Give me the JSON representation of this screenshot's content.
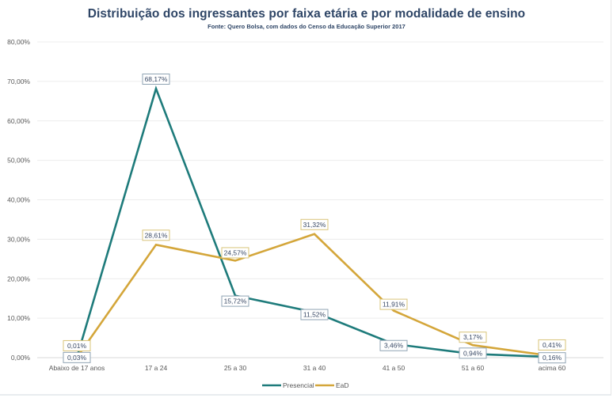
{
  "chart_data": {
    "type": "line",
    "title": "Distribuição dos ingressantes por faixa etária e por modalidade de ensino",
    "subtitle": "Fonte: Quero Bolsa, com dados do Censo da Educação Superior 2017",
    "xlabel": "",
    "ylabel": "",
    "categories": [
      "Abaixo de 17 anos",
      "17 a 24",
      "25 a 30",
      "31 a 40",
      "41 a 50",
      "51 a 60",
      "acima 60"
    ],
    "ylim": [
      0,
      80
    ],
    "yticks": [
      0,
      10,
      20,
      30,
      40,
      50,
      60,
      70,
      80
    ],
    "ytick_labels": [
      "0,00%",
      "10,00%",
      "20,00%",
      "30,00%",
      "40,00%",
      "50,00%",
      "60,00%",
      "70,00%",
      "80,00%"
    ],
    "grid": true,
    "legend_position": "bottom-center",
    "series": [
      {
        "name": "Presencial",
        "color": "#1e7b7b",
        "values": [
          0.03,
          68.17,
          15.72,
          11.52,
          3.46,
          0.94,
          0.16
        ],
        "labels": [
          "0,03%",
          "68,17%",
          "15,72%",
          "11,52%",
          "3,46%",
          "0,94%",
          "0,16%"
        ]
      },
      {
        "name": "EaD",
        "color": "#d4a63a",
        "values": [
          0.01,
          28.61,
          24.57,
          31.32,
          11.91,
          3.17,
          0.41
        ],
        "labels": [
          "0,01%",
          "28,61%",
          "24,57%",
          "31,32%",
          "11,91%",
          "3,17%",
          "0,41%"
        ]
      }
    ]
  }
}
